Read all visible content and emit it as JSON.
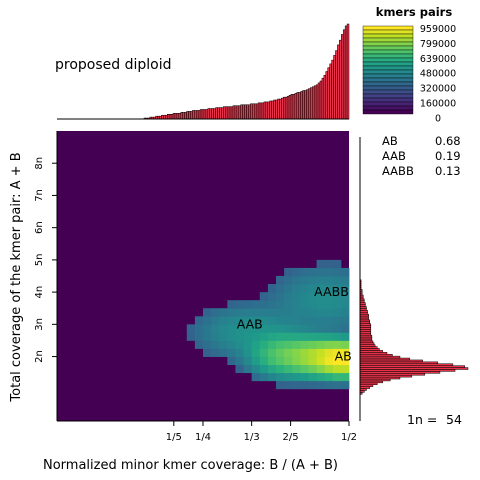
{
  "chart_data": {
    "type": "heatmap",
    "title": "proposed diploid",
    "xlabel": "Normalized minor kmer coverage: B / (A + B)",
    "ylabel": "Total coverage of the kmer pair: A + B",
    "xlim": [
      0.0,
      0.5
    ],
    "x_ticks": [
      {
        "value": 0.2,
        "label": "1/5"
      },
      {
        "value": 0.25,
        "label": "1/4"
      },
      {
        "value": 0.3333,
        "label": "1/3"
      },
      {
        "value": 0.4,
        "label": "2/5"
      },
      {
        "value": 0.5,
        "label": "1/2"
      }
    ],
    "ylim": [
      0,
      486
    ],
    "y_ticks": [
      {
        "value": 108,
        "label": "2n"
      },
      {
        "value": 162,
        "label": "3n"
      },
      {
        "value": 216,
        "label": "4n"
      },
      {
        "value": 270,
        "label": "5n"
      },
      {
        "value": 324,
        "label": "6n"
      },
      {
        "value": 378,
        "label": "7n"
      },
      {
        "value": 432,
        "label": "8n"
      }
    ],
    "colorbar": {
      "title": "kmers pairs",
      "ticks": [
        959000,
        799000,
        639000,
        480000,
        320000,
        160000,
        0
      ],
      "max": 959000
    },
    "peaks": [
      {
        "label": "AB",
        "x": 0.49,
        "y": 108
      },
      {
        "label": "AAB",
        "x": 0.33,
        "y": 162
      },
      {
        "label": "AABB",
        "x": 0.47,
        "y": 216
      }
    ],
    "density_clusters": [
      {
        "x": 0.49,
        "y": 104,
        "sx": 0.022,
        "sy": 13,
        "max": 959000
      },
      {
        "x": 0.45,
        "y": 108,
        "sx": 0.03,
        "sy": 15,
        "max": 420000
      },
      {
        "x": 0.39,
        "y": 112,
        "sx": 0.03,
        "sy": 18,
        "max": 140000
      },
      {
        "x": 0.33,
        "y": 150,
        "sx": 0.05,
        "sy": 24,
        "max": 22000
      },
      {
        "x": 0.46,
        "y": 205,
        "sx": 0.05,
        "sy": 30,
        "max": 18000
      }
    ],
    "smudge_fractions": [
      {
        "label": "AB",
        "value": "0.68"
      },
      {
        "label": "AAB",
        "value": "0.19"
      },
      {
        "label": "AABB",
        "value": "0.13"
      }
    ],
    "one_n_label": "1n =",
    "one_n_value": "54",
    "top_histogram": {
      "x_start": 0.0,
      "x_end": 0.5,
      "values": [
        0,
        0,
        0,
        0,
        0,
        0,
        0,
        0,
        0,
        0,
        0,
        0,
        0,
        0,
        0,
        0,
        0,
        0,
        0,
        0,
        0,
        0,
        0,
        0,
        0,
        0,
        0,
        0,
        0,
        0,
        0,
        0,
        0,
        0,
        0,
        0,
        0,
        0,
        0,
        0,
        0,
        0,
        0,
        0,
        0,
        1,
        1,
        1,
        2,
        2,
        2,
        3,
        3,
        3,
        4,
        4,
        4,
        5,
        5,
        5,
        6,
        6,
        6,
        6,
        7,
        7,
        7,
        8,
        8,
        8,
        9,
        9,
        9,
        9,
        10,
        10,
        10,
        10,
        11,
        11,
        11,
        11,
        12,
        12,
        12,
        12,
        13,
        13,
        13,
        13,
        13,
        14,
        14,
        14,
        14,
        15,
        15,
        15,
        15,
        15,
        16,
        16,
        16,
        16,
        17,
        17,
        17,
        18,
        18,
        18,
        19,
        19,
        20,
        20,
        21,
        21,
        22,
        23,
        23,
        24,
        25,
        26,
        26,
        27,
        28,
        28,
        29,
        30,
        30,
        31,
        32,
        33,
        34,
        35,
        36,
        38,
        40,
        43,
        46,
        50,
        54,
        58,
        62,
        67,
        72,
        78,
        83,
        89,
        94,
        98,
        100
      ]
    },
    "right_histogram": {
      "y_start": 0,
      "y_end": 486,
      "values": [
        0,
        0,
        0,
        0,
        0,
        0,
        0,
        0,
        0,
        0,
        0,
        0,
        0,
        0,
        2,
        4,
        6,
        9,
        12,
        16,
        21,
        28,
        37,
        48,
        60,
        74,
        88,
        100,
        97,
        86,
        72,
        58,
        46,
        37,
        30,
        25,
        21,
        18,
        16,
        14,
        13,
        12,
        11,
        11,
        11,
        10,
        10,
        10,
        10,
        10,
        10,
        9,
        9,
        8,
        8,
        8,
        7,
        7,
        6,
        6,
        5,
        5,
        4,
        4,
        3,
        3,
        2,
        2,
        2,
        1,
        1,
        1,
        1,
        1,
        0,
        0,
        0,
        0,
        0,
        0,
        0,
        0,
        0,
        0,
        0,
        0,
        0,
        0,
        0,
        0,
        0,
        0,
        0,
        0,
        0,
        0,
        0,
        0,
        0,
        0,
        0,
        0,
        0,
        0,
        0,
        0,
        0,
        0,
        0,
        0,
        0,
        0,
        0,
        0,
        0,
        0,
        0,
        0,
        0,
        0,
        0,
        0,
        0,
        0,
        0,
        0,
        0,
        0,
        0,
        0,
        0,
        0,
        0,
        0,
        0,
        0,
        0,
        0,
        0,
        0,
        0,
        0,
        0,
        0,
        0,
        0,
        0,
        0,
        0,
        0,
        0,
        0
      ]
    }
  },
  "colors": {
    "bar_fill": "#e8334a",
    "bar_stroke": "#000000",
    "background": "#ffffff"
  }
}
